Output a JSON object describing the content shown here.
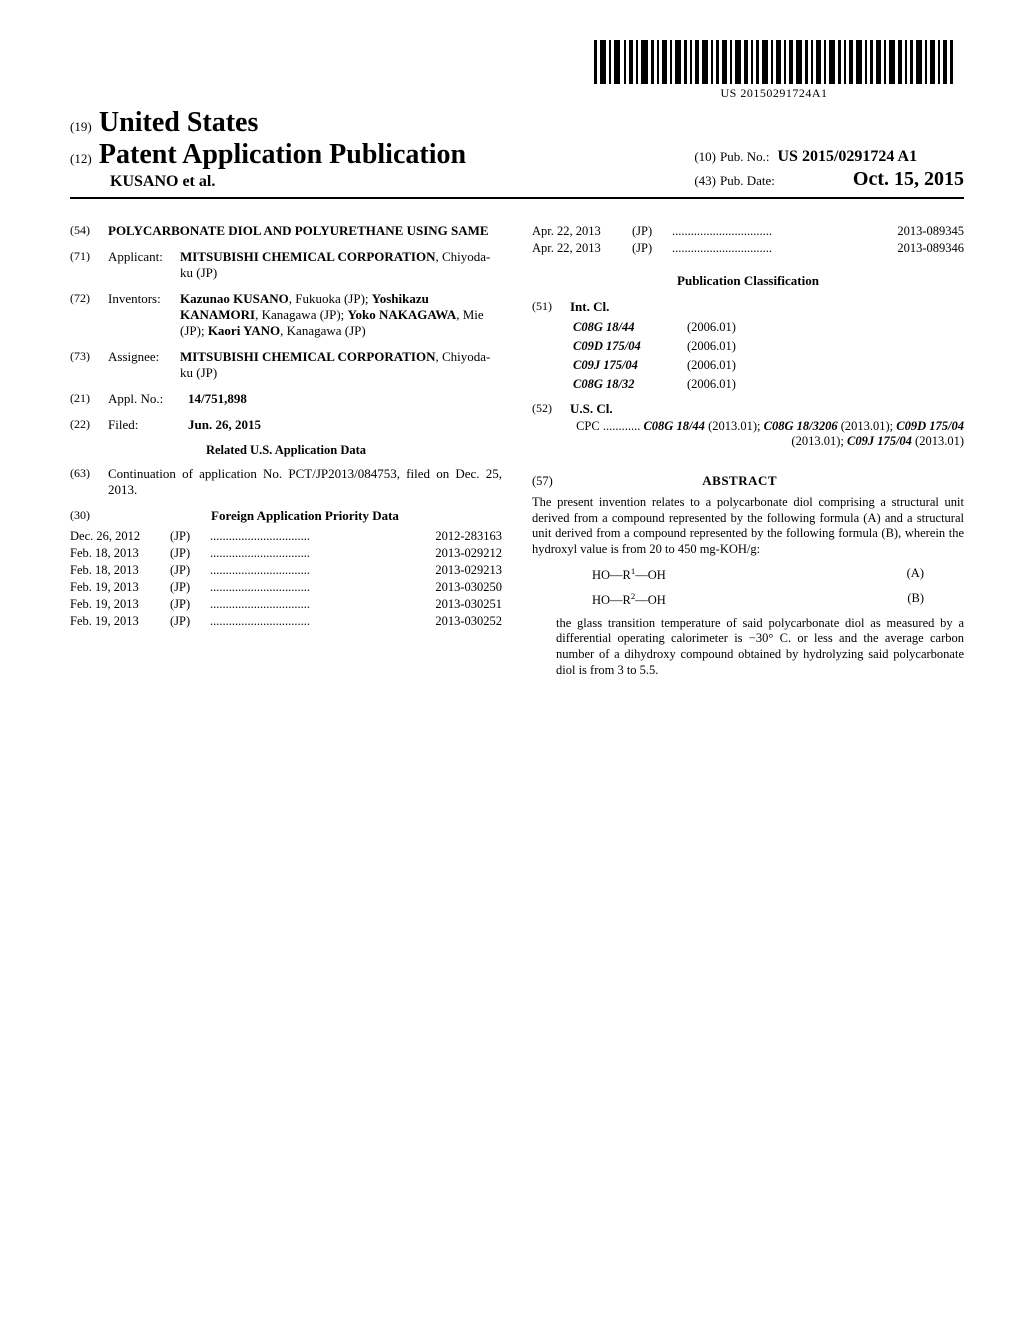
{
  "barcode": {
    "text": "US 20150291724A1"
  },
  "header": {
    "prefix19": "(19)",
    "country": "United States",
    "prefix12": "(12)",
    "pubtype": "Patent Application Publication",
    "authors": "KUSANO et al.",
    "prefix10": "(10)",
    "pubno_label": "Pub. No.:",
    "pubno": "US 2015/0291724 A1",
    "prefix43": "(43)",
    "pubdate_label": "Pub. Date:",
    "pubdate": "Oct. 15, 2015"
  },
  "title": {
    "num": "(54)",
    "text": "POLYCARBONATE DIOL AND POLYURETHANE USING SAME"
  },
  "applicant": {
    "num": "(71)",
    "label": "Applicant:",
    "name": "MITSUBISHI CHEMICAL CORPORATION",
    "loc": ", Chiyoda-ku (JP)"
  },
  "inventors": {
    "num": "(72)",
    "label": "Inventors:",
    "text_parts": [
      {
        "name": "Kazunao KUSANO",
        "loc": ", Fukuoka (JP); "
      },
      {
        "name": "Yoshikazu KANAMORI",
        "loc": ", Kanagawa (JP); "
      },
      {
        "name": "Yoko NAKAGAWA",
        "loc": ", Mie (JP); "
      },
      {
        "name": "Kaori YANO",
        "loc": ", Kanagawa (JP)"
      }
    ]
  },
  "assignee": {
    "num": "(73)",
    "label": "Assignee:",
    "name": "MITSUBISHI CHEMICAL CORPORATION",
    "loc": ", Chiyoda-ku (JP)"
  },
  "applno": {
    "num": "(21)",
    "label": "Appl. No.:",
    "val": "14/751,898"
  },
  "filed": {
    "num": "(22)",
    "label": "Filed:",
    "val": "Jun. 26, 2015"
  },
  "related": {
    "head": "Related U.S. Application Data",
    "num": "(63)",
    "text": "Continuation of application No. PCT/JP2013/084753, filed on Dec. 25, 2013."
  },
  "foreign_priority": {
    "num": "(30)",
    "head": "Foreign Application Priority Data",
    "rows": [
      {
        "date": "Dec. 26, 2012",
        "cc": "(JP)",
        "appno": "2012-283163"
      },
      {
        "date": "Feb. 18, 2013",
        "cc": "(JP)",
        "appno": "2013-029212"
      },
      {
        "date": "Feb. 18, 2013",
        "cc": "(JP)",
        "appno": "2013-029213"
      },
      {
        "date": "Feb. 19, 2013",
        "cc": "(JP)",
        "appno": "2013-030250"
      },
      {
        "date": "Feb. 19, 2013",
        "cc": "(JP)",
        "appno": "2013-030251"
      },
      {
        "date": "Feb. 19, 2013",
        "cc": "(JP)",
        "appno": "2013-030252"
      }
    ]
  },
  "foreign_priority_right": {
    "rows": [
      {
        "date": "Apr. 22, 2013",
        "cc": "(JP)",
        "appno": "2013-089345"
      },
      {
        "date": "Apr. 22, 2013",
        "cc": "(JP)",
        "appno": "2013-089346"
      }
    ]
  },
  "pub_classification": {
    "head": "Publication Classification",
    "intcl": {
      "num": "(51)",
      "label": "Int. Cl.",
      "rows": [
        {
          "code": "C08G 18/44",
          "ver": "(2006.01)"
        },
        {
          "code": "C09D 175/04",
          "ver": "(2006.01)"
        },
        {
          "code": "C09J 175/04",
          "ver": "(2006.01)"
        },
        {
          "code": "C08G 18/32",
          "ver": "(2006.01)"
        }
      ]
    },
    "uscl": {
      "num": "(52)",
      "label": "U.S. Cl.",
      "cpc_label": "CPC",
      "cpc_parts": [
        {
          "code": "C08G 18/44",
          "date": "(2013.01); "
        },
        {
          "code": "C08G 18/3206",
          "date": "(2013.01); "
        },
        {
          "code": "C09D 175/04",
          "date": "(2013.01); "
        },
        {
          "code": "C09J 175/04",
          "date": "(2013.01)"
        }
      ]
    }
  },
  "abstract": {
    "num": "(57)",
    "head": "ABSTRACT",
    "para1": "The present invention relates to a polycarbonate diol comprising a structural unit derived from a compound represented by the following formula (A) and a structural unit derived from a compound represented by the following formula (B), wherein the hydroxyl value is from 20 to 450 mg-KOH/g:",
    "formulaA": {
      "lhs": "HO—R",
      "sup": "1",
      "rhs": "—OH",
      "tag": "(A)"
    },
    "formulaB": {
      "lhs": "HO—R",
      "sup": "2",
      "rhs": "—OH",
      "tag": "(B)"
    },
    "para2": "the glass transition temperature of said polycarbonate diol as measured by a differential operating calorimeter is −30° C. or less and the average carbon number of a dihydroxy compound obtained by hydrolyzing said polycarbonate diol is from 3 to 5.5."
  }
}
